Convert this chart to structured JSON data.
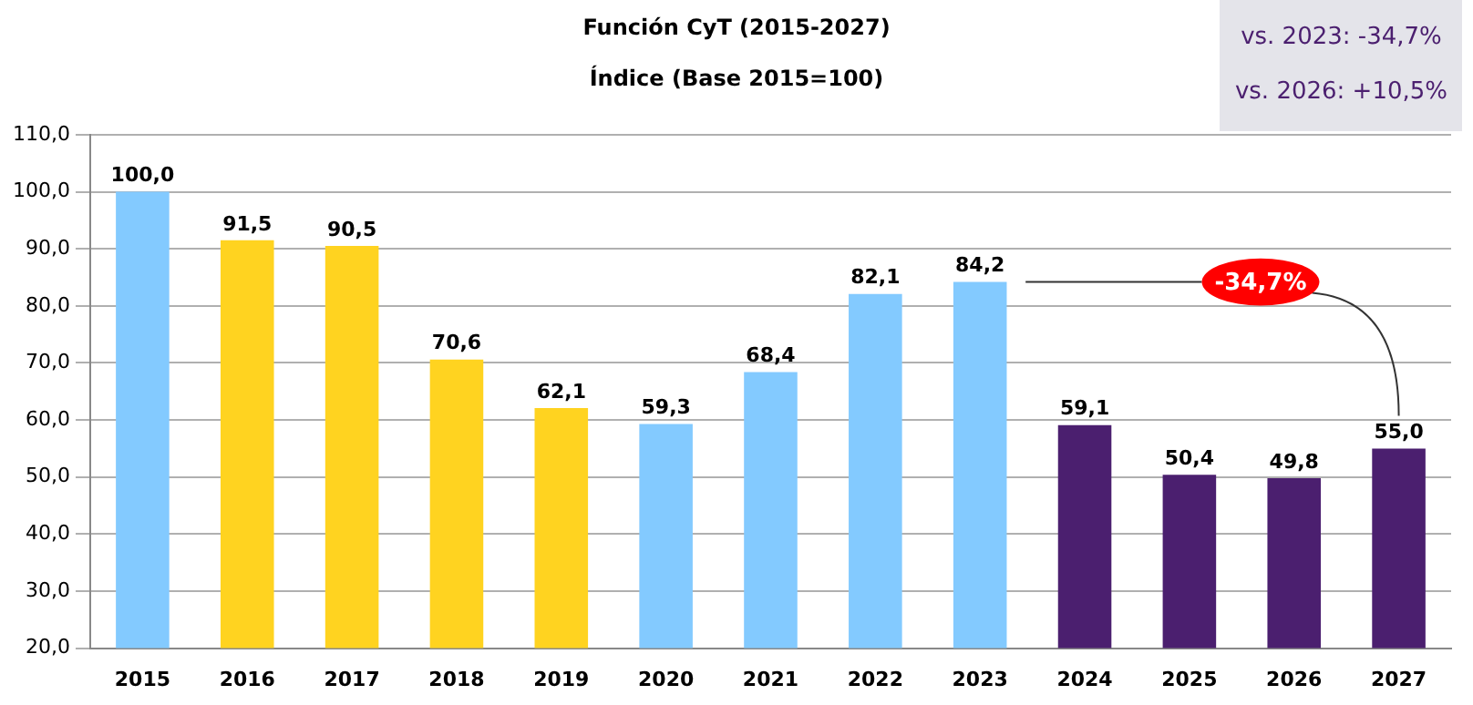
{
  "chart_data": {
    "type": "bar",
    "title": "Función CyT (2015-2027)",
    "subtitle": "Índice (Base 2015=100)",
    "categories": [
      "2015",
      "2016",
      "2017",
      "2018",
      "2019",
      "2020",
      "2021",
      "2022",
      "2023",
      "2024",
      "2025",
      "2026",
      "2027"
    ],
    "values": [
      100.0,
      91.5,
      90.5,
      70.6,
      62.1,
      59.3,
      68.4,
      82.1,
      84.2,
      59.1,
      50.4,
      49.8,
      55.0
    ],
    "colors": [
      "#83caff",
      "#ffd320",
      "#ffd320",
      "#ffd320",
      "#ffd320",
      "#83caff",
      "#83caff",
      "#83caff",
      "#83caff",
      "#4b1f6f",
      "#4b1f6f",
      "#4b1f6f",
      "#4b1f6f"
    ],
    "value_labels": [
      "100,0",
      "91,5",
      "90,5",
      "70,6",
      "62,1",
      "59,3",
      "68,4",
      "82,1",
      "84,2",
      "59,1",
      "50,4",
      "49,8",
      "55,0"
    ],
    "ylim": [
      20,
      110
    ],
    "yticks": [
      {
        "value": 20,
        "label": "20,0"
      },
      {
        "value": 30,
        "label": "30,0"
      },
      {
        "value": 40,
        "label": "40,0"
      },
      {
        "value": 50,
        "label": "50,0"
      },
      {
        "value": 60,
        "label": "60,0"
      },
      {
        "value": 70,
        "label": "70,0"
      },
      {
        "value": 80,
        "label": "80,0"
      },
      {
        "value": 90,
        "label": "90,0"
      },
      {
        "value": 100,
        "label": "100,0"
      },
      {
        "value": 110,
        "label": "110,0"
      }
    ],
    "grid": "y",
    "annotations": [
      "vs. 2023: -34,7%",
      "vs. 2026: +10,5%",
      "-34,7%"
    ]
  }
}
